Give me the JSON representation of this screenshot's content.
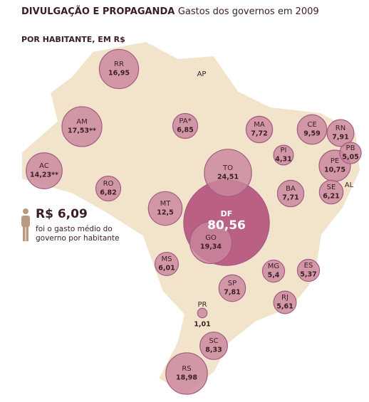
{
  "header": {
    "title": "DIVULGAÇÃO E PROPAGANDA",
    "subtitle": "Gastos dos governos em 2009",
    "unit": "POR HABITANTE, EM R$"
  },
  "average": {
    "value_label": "R$ 6,09",
    "note_line1": "foi o gasto médio do",
    "note_line2": "governo por habitante"
  },
  "states": [
    {
      "label": "RR",
      "value": 16.95,
      "value_label": "16,95"
    },
    {
      "label": "AM",
      "value": 17.53,
      "value_label": "17,53**"
    },
    {
      "label": "AC",
      "value": 14.23,
      "value_label": "14,23**"
    },
    {
      "label": "PA*",
      "value": 6.85,
      "value_label": "6,85"
    },
    {
      "label": "AP"
    },
    {
      "label": "MA",
      "value": 7.72,
      "value_label": "7,72"
    },
    {
      "label": "CE",
      "value": 9.59,
      "value_label": "9,59"
    },
    {
      "label": "RN",
      "value": 7.91,
      "value_label": "7,91"
    },
    {
      "label": "PB",
      "value": 5.05,
      "value_label": "5,05"
    },
    {
      "label": "PE",
      "value": 10.75,
      "value_label": "10,75"
    },
    {
      "label": "PI",
      "value": 4.31,
      "value_label": "4,31"
    },
    {
      "label": "TO",
      "value": 24.51,
      "value_label": "24,51"
    },
    {
      "label": "BA",
      "value": 7.71,
      "value_label": "7,71"
    },
    {
      "label": "SE",
      "value": 6.21,
      "value_label": "6,21"
    },
    {
      "label": "AL"
    },
    {
      "label": "RO",
      "value": 6.82,
      "value_label": "6,82"
    },
    {
      "label": "MT",
      "value": 12.5,
      "value_label": "12,5"
    },
    {
      "label": "DF",
      "value": 80.56,
      "value_label": "80,56"
    },
    {
      "label": "GO",
      "value": 19.34,
      "value_label": "19,34"
    },
    {
      "label": "MS",
      "value": 6.01,
      "value_label": "6,01"
    },
    {
      "label": "MG",
      "value": 5.4,
      "value_label": "5,4"
    },
    {
      "label": "ES",
      "value": 5.37,
      "value_label": "5,37"
    },
    {
      "label": "SP",
      "value": 7.81,
      "value_label": "7,81"
    },
    {
      "label": "RJ",
      "value": 5.61,
      "value_label": "5,61"
    },
    {
      "label": "PR",
      "value": 1.01,
      "value_label": "1,01"
    },
    {
      "label": "SC",
      "value": 8.33,
      "value_label": "8,33"
    },
    {
      "label": "RS",
      "value": 18.98,
      "value_label": "18,98"
    }
  ]
}
